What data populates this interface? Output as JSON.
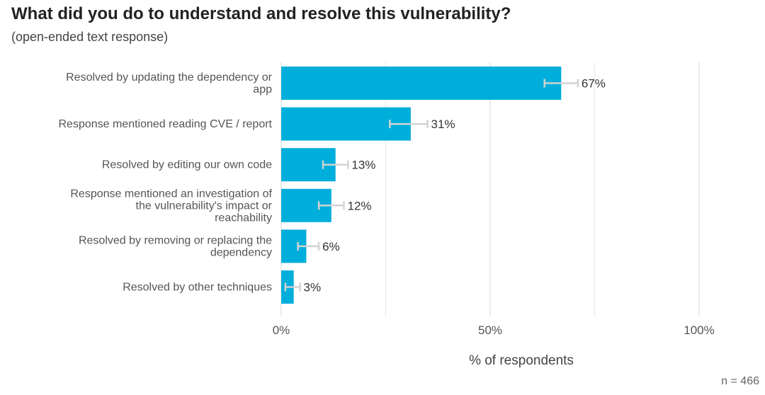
{
  "chart_data": {
    "type": "bar",
    "orientation": "horizontal",
    "title": "What did you do to understand and resolve this vulnerability?",
    "subtitle": "(open-ended text response)",
    "categories": [
      [
        "Resolved by updating the dependency or",
        "app"
      ],
      [
        "Response mentioned reading CVE / report"
      ],
      [
        "Resolved by editing our own code"
      ],
      [
        "Response mentioned an investigation of",
        "the vulnerability's impact or",
        "reachability"
      ],
      [
        "Resolved by removing or replacing the",
        "dependency"
      ],
      [
        "Resolved by other techniques"
      ]
    ],
    "values": [
      67,
      31,
      13,
      12,
      6,
      3
    ],
    "value_labels": [
      "67%",
      "31%",
      "13%",
      "12%",
      "6%",
      "3%"
    ],
    "error_low": [
      63,
      26,
      10,
      9,
      4,
      1
    ],
    "error_high": [
      71,
      35,
      16,
      15,
      9,
      4.5
    ],
    "xlim": [
      0,
      100
    ],
    "xticks": [
      0,
      50,
      100
    ],
    "xtick_labels": [
      "0%",
      "50%",
      "100%"
    ],
    "minor_gridlines": [
      25,
      75
    ],
    "xlabel": "% of respondents",
    "note": "n =  466",
    "colors": {
      "bar": "#00aedb",
      "error_bar": "#d3d3d3",
      "grid": "#e6e6e6"
    }
  }
}
